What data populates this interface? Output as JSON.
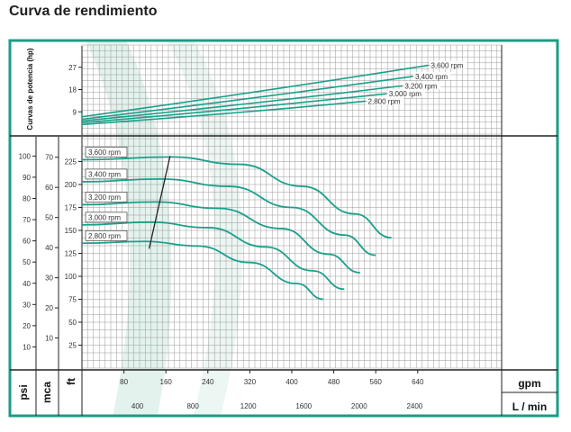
{
  "title": "Curva de rendimiento",
  "colors": {
    "frame": "#1a9c84",
    "curve": "#1aa08a",
    "grid": "#9a9a9a",
    "axis": "#222222",
    "watermark": "#dcefe9"
  },
  "chart_data": [
    {
      "type": "line",
      "name": "power",
      "ylabel": "Curvas de potencia (hp)",
      "yticks": [
        9,
        18,
        27
      ],
      "ylim": [
        0,
        36
      ],
      "xlim": [
        0,
        800
      ],
      "series": [
        {
          "name": "3,600 rpm",
          "label": "3,600 rpm",
          "x": [
            0,
            660
          ],
          "y": [
            7,
            27.8
          ]
        },
        {
          "name": "3,400 rpm",
          "label": "3,400 rpm",
          "x": [
            0,
            630
          ],
          "y": [
            6,
            23.3
          ]
        },
        {
          "name": "3,200 rpm",
          "label": "3,200 rpm",
          "x": [
            0,
            610
          ],
          "y": [
            5.3,
            19.5
          ]
        },
        {
          "name": "3,000 rpm",
          "label": "3,000 rpm",
          "x": [
            0,
            580
          ],
          "y": [
            4.6,
            16.3
          ]
        },
        {
          "name": "2,800 rpm",
          "label": "2,800 rpm",
          "x": [
            0,
            540
          ],
          "y": [
            3.9,
            13.3
          ]
        }
      ]
    },
    {
      "type": "line",
      "name": "head",
      "ylabel": "ft",
      "ylim": [
        0,
        250
      ],
      "yticks": [
        25,
        50,
        75,
        100,
        125,
        150,
        175,
        200,
        225
      ],
      "xlabel": "gpm",
      "xlim": [
        0,
        800
      ],
      "xticks": [
        80,
        160,
        240,
        320,
        400,
        480,
        560,
        640
      ],
      "xlabel2": "L / min",
      "x2ticks": [
        400,
        800,
        1200,
        1600,
        2000,
        2400
      ],
      "psi_label": "psi",
      "psi_ticks": [
        10,
        20,
        30,
        40,
        50,
        60,
        70,
        80,
        90,
        100
      ],
      "mca_label": "mca",
      "mca_ticks": [
        10,
        20,
        30,
        40,
        50,
        60,
        70
      ],
      "series": [
        {
          "name": "3,600 rpm",
          "label": "3,600 rpm",
          "x": [
            0,
            170,
            300,
            420,
            520,
            590
          ],
          "y": [
            227,
            230,
            222,
            198,
            168,
            142
          ]
        },
        {
          "name": "3,400 rpm",
          "label": "3,400 rpm",
          "x": [
            0,
            150,
            280,
            400,
            500,
            560
          ],
          "y": [
            203,
            206,
            198,
            175,
            145,
            123
          ]
        },
        {
          "name": "3,200 rpm",
          "label": "3,200 rpm",
          "x": [
            0,
            140,
            260,
            380,
            470,
            530
          ],
          "y": [
            178,
            181,
            174,
            152,
            124,
            104
          ]
        },
        {
          "name": "3,000 rpm",
          "label": "3,000 rpm",
          "x": [
            0,
            130,
            240,
            350,
            440,
            500
          ],
          "y": [
            156,
            159,
            153,
            132,
            106,
            86
          ]
        },
        {
          "name": "2,800 rpm",
          "label": "2,800 rpm",
          "x": [
            0,
            120,
            220,
            320,
            410,
            460
          ],
          "y": [
            136,
            138,
            133,
            115,
            92,
            75
          ]
        }
      ],
      "bep_line": {
        "x": [
          128,
          168
        ],
        "y": [
          130,
          231
        ]
      }
    }
  ]
}
